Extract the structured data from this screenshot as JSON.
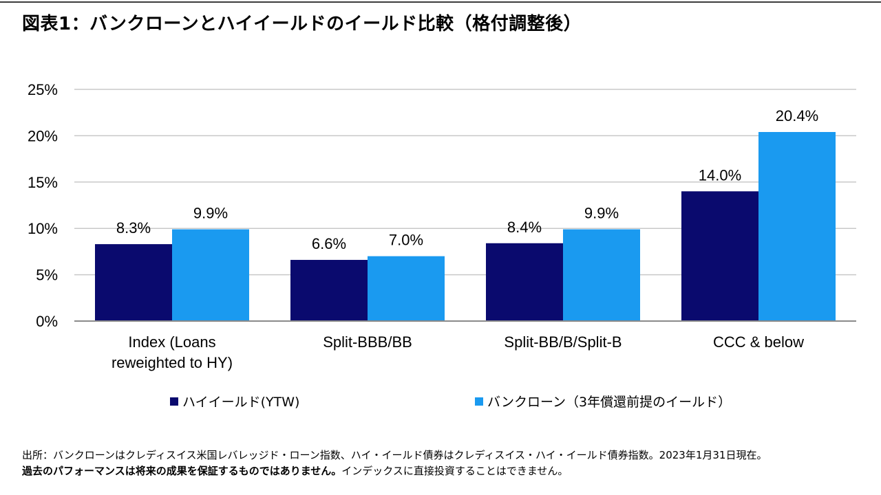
{
  "title": "図表1：バンクローンとハイイールドのイールド比較（格付調整後）",
  "chart_data": {
    "type": "bar",
    "title": "図表1：バンクローンとハイイールドのイールド比較（格付調整後）",
    "categories": [
      [
        "Index (Loans",
        "reweighted to HY)"
      ],
      [
        "Split-BBB/BB"
      ],
      [
        "Split-BB/B/Split-B"
      ],
      [
        "CCC & below"
      ]
    ],
    "series": [
      {
        "name": "ハイイールド(YTW)",
        "color": "#0a0a6e",
        "values": [
          8.3,
          6.6,
          8.4,
          14.0
        ],
        "labels": [
          "8.3%",
          "6.6%",
          "8.4%",
          "14.0%"
        ]
      },
      {
        "name": "バンクローン（3年償還前提のイールド）",
        "color": "#1a9af0",
        "values": [
          9.9,
          7.0,
          9.9,
          20.4
        ],
        "labels": [
          "9.9%",
          "7.0%",
          "9.9%",
          "20.4%"
        ]
      }
    ],
    "ylim": [
      0,
      25
    ],
    "yticks": [
      0,
      5,
      10,
      15,
      20,
      25
    ],
    "ytick_labels": [
      "0%",
      "5%",
      "10%",
      "15%",
      "20%",
      "25%"
    ],
    "grid": true,
    "legend_position": "bottom",
    "xlabel": "",
    "ylabel": ""
  },
  "legend": {
    "hy_label": "ハイイールド(YTW)",
    "bl_label": "バンクローン（3年償還前提のイールド）",
    "hy_color": "#0a0a6e",
    "bl_color": "#1a9af0"
  },
  "footnote": {
    "line1": "出所：バンクローンはクレディスイス米国レバレッジド・ローン指数、ハイ・イールド債券はクレディスイス・ハイ・イールド債券指数。2023年1月31日現在。",
    "line2_bold": "過去のパフォーマンスは将来の成果を保証するものではありません。",
    "line2_rest": "インデックスに直接投資することはできません。"
  }
}
